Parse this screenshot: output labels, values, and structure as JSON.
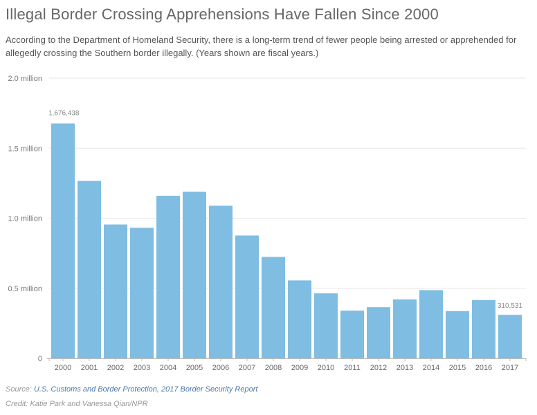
{
  "title": "Illegal Border Crossing Apprehensions Have Fallen Since 2000",
  "subtitle": "According to the Department of Homeland Security, there is a long-term trend of fewer people being arrested or apprehended for allegedly crossing the Southern border illegally. (Years shown are fiscal years.)",
  "source_label": "Source:",
  "source_link": "U.S. Customs and Border Protection, 2017 Border Security Report",
  "credit": "Credit: Katie Park and Vanessa Qian/NPR",
  "colors": {
    "bar": "#7fbde2",
    "grid": "#e6e6e6",
    "axis": "#bbbbbb",
    "tick_text": "#777777"
  },
  "chart_data": {
    "type": "bar",
    "title": "Illegal Border Crossing Apprehensions Have Fallen Since 2000",
    "xlabel": "",
    "ylabel": "",
    "ylim": [
      0,
      2000000
    ],
    "y_ticks": [
      0,
      500000,
      1000000,
      1500000,
      2000000
    ],
    "y_tick_labels": [
      "0",
      "0.5 million",
      "1.0 million",
      "1.5 million",
      "2.0 million"
    ],
    "categories": [
      "2000",
      "2001",
      "2002",
      "2003",
      "2004",
      "2005",
      "2006",
      "2007",
      "2008",
      "2009",
      "2010",
      "2011",
      "2012",
      "2013",
      "2014",
      "2015",
      "2016",
      "2017"
    ],
    "values": [
      1676438,
      1266214,
      955310,
      931557,
      1160395,
      1189075,
      1089092,
      876704,
      723825,
      556041,
      463382,
      340252,
      364768,
      420789,
      486651,
      337117,
      415816,
      310531
    ],
    "data_labels": [
      {
        "index": 0,
        "text": "1,676,438"
      },
      {
        "index": 17,
        "text": "310,531"
      }
    ],
    "grid": true,
    "legend": "none"
  }
}
